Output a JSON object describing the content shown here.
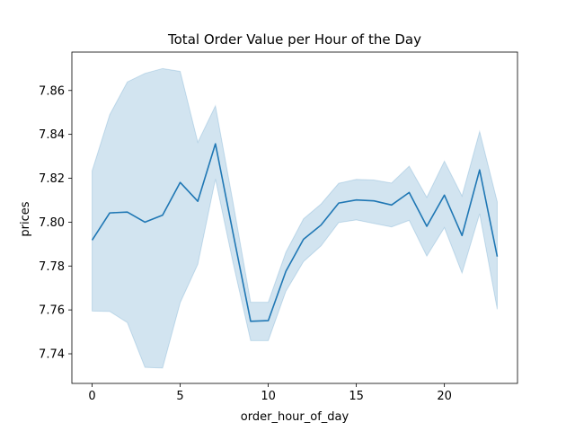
{
  "chart_data": {
    "type": "line",
    "title": "Total Order Value per Hour of the Day",
    "xlabel": "order_hour_of_day",
    "ylabel": "prices",
    "xlim": [
      -1.15,
      24.15
    ],
    "ylim": [
      7.7265,
      7.8775
    ],
    "xticks": [
      0,
      5,
      10,
      15,
      20
    ],
    "yticks": [
      7.74,
      7.76,
      7.78,
      7.8,
      7.82,
      7.84,
      7.86
    ],
    "ytick_labels": [
      "7.74",
      "7.76",
      "7.78",
      "7.80",
      "7.82",
      "7.84",
      "7.86"
    ],
    "grid": false,
    "legend": "none",
    "series": [
      {
        "color": "#1f77b4",
        "band_color": "#1f77b4",
        "x": [
          0,
          1,
          2,
          3,
          4,
          5,
          6,
          7,
          8,
          9,
          10,
          11,
          12,
          13,
          14,
          15,
          16,
          17,
          18,
          19,
          20,
          21,
          22,
          23
        ],
        "y": [
          7.7918,
          7.8042,
          7.8046,
          7.8,
          7.8032,
          7.8181,
          7.8095,
          7.8357,
          7.795,
          7.7548,
          7.7551,
          7.7776,
          7.7922,
          7.7987,
          7.8087,
          7.8101,
          7.8097,
          7.8078,
          7.8135,
          7.7981,
          7.8123,
          7.7939,
          7.8238,
          7.7843
        ],
        "ci_low": [
          7.7595,
          7.7593,
          7.7542,
          7.7338,
          7.7335,
          7.7633,
          7.7808,
          7.8196,
          7.7815,
          7.746,
          7.746,
          7.7685,
          7.782,
          7.7892,
          7.7998,
          7.801,
          7.7994,
          7.7978,
          7.8008,
          7.7845,
          7.7975,
          7.7768,
          7.8038,
          7.7603
        ],
        "ci_high": [
          7.8234,
          7.849,
          7.8639,
          7.8678,
          7.87,
          7.8687,
          7.8364,
          7.853,
          7.809,
          7.7635,
          7.7635,
          7.7863,
          7.8015,
          7.8083,
          7.8177,
          7.8195,
          7.8192,
          7.8178,
          7.8255,
          7.8113,
          7.8278,
          7.8119,
          7.8413,
          7.8093
        ]
      }
    ]
  }
}
